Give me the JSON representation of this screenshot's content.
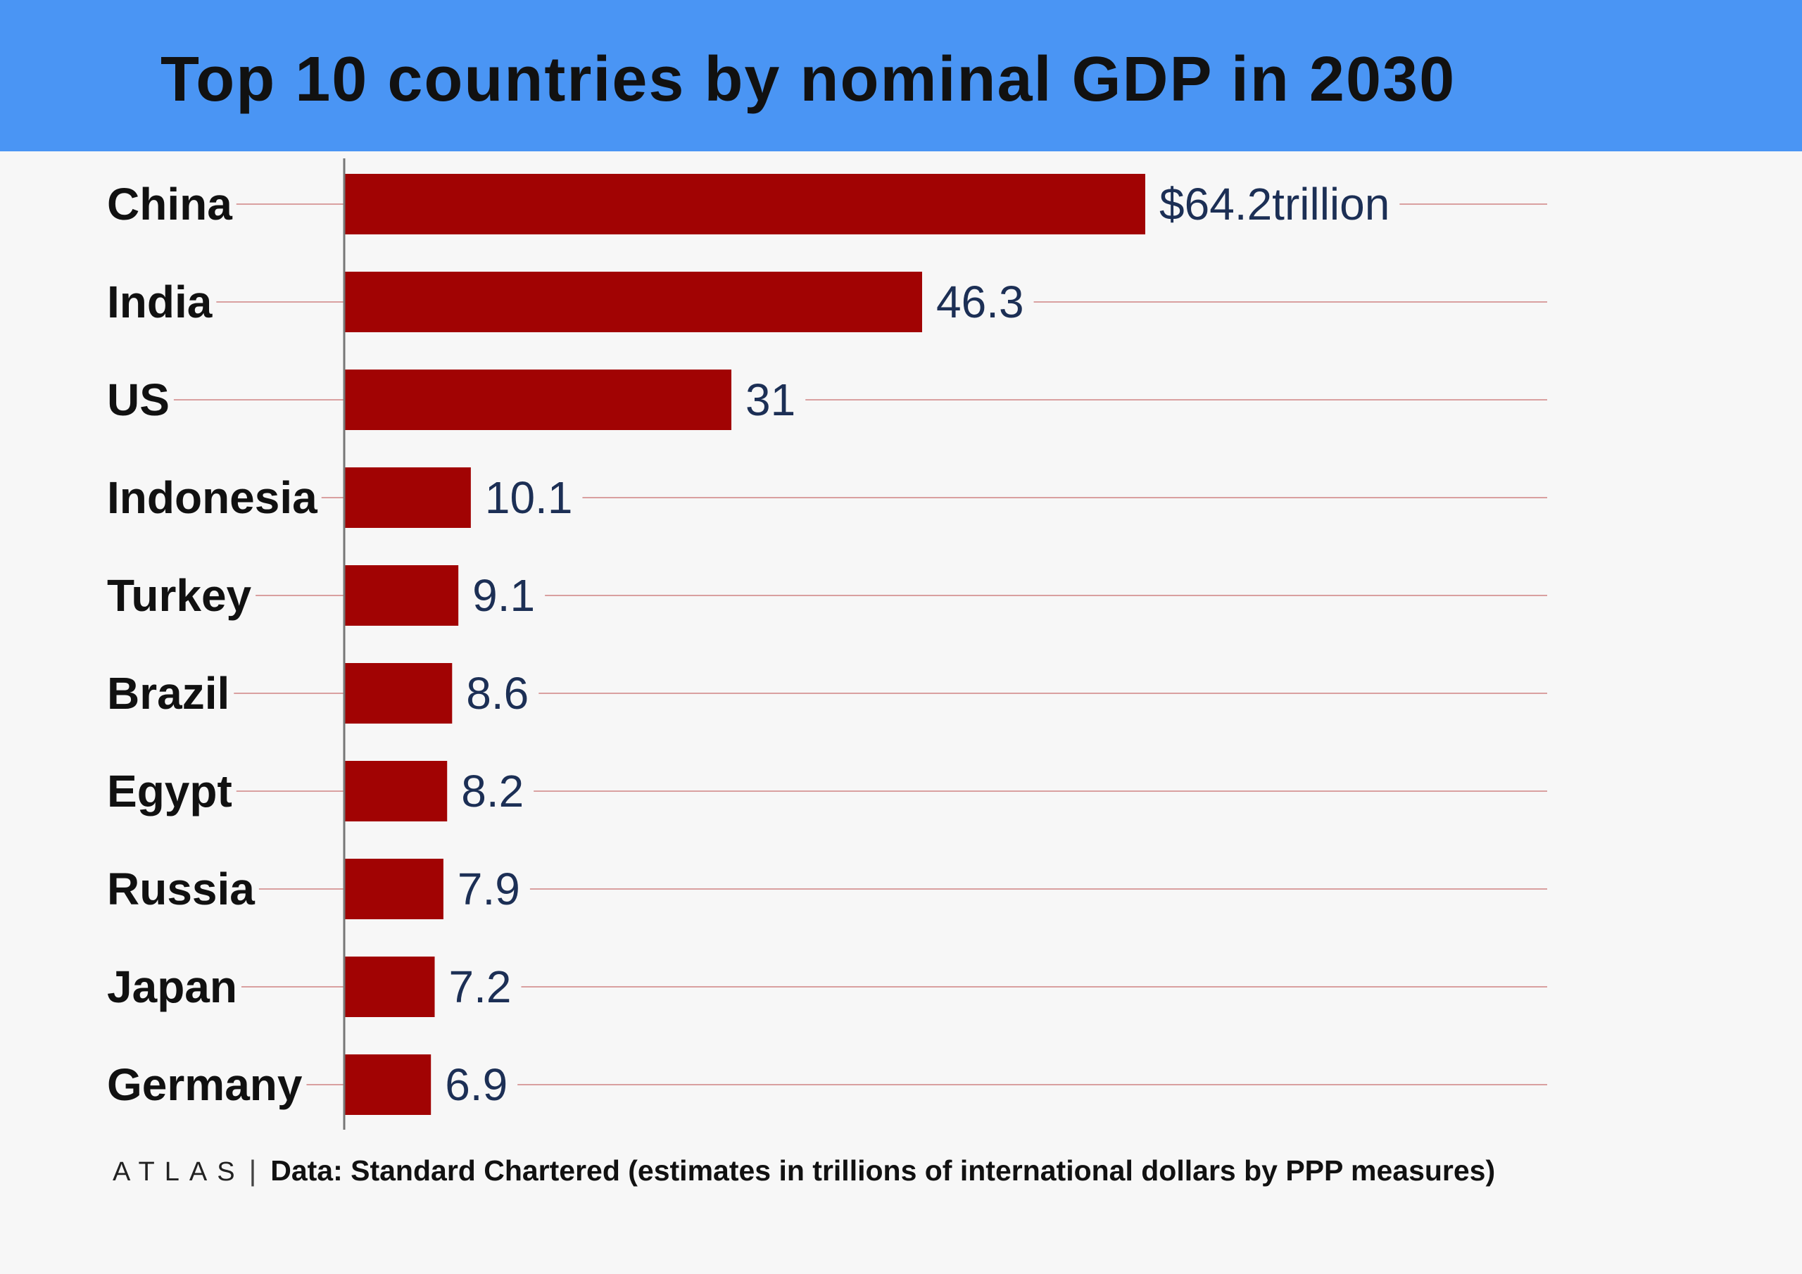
{
  "title": "Top 10 countries by nominal GDP in 2030",
  "footer": {
    "brand": "ATLAS",
    "separator": "|",
    "source": "Data: Standard Chartered (estimates in trillions of international dollars by PPP measures)"
  },
  "colors": {
    "header_bg": "#4a95f4",
    "bar": "#a10303",
    "value_text": "#1c2f55",
    "guide_line": "#d9a0a0"
  },
  "chart_data": {
    "type": "bar",
    "orientation": "horizontal",
    "title": "Top 10 countries by nominal GDP in 2030",
    "categories": [
      "China",
      "India",
      "US",
      "Indonesia",
      "Turkey",
      "Brazil",
      "Egypt",
      "Russia",
      "Japan",
      "Germany"
    ],
    "values": [
      64.2,
      46.3,
      31,
      10.1,
      9.1,
      8.6,
      8.2,
      7.9,
      7.2,
      6.9
    ],
    "labels": [
      "$64.2trillion",
      "46.3",
      "31",
      "10.1",
      "9.1",
      "8.6",
      "8.2",
      "7.9",
      "7.2",
      "6.9"
    ],
    "unit": "trillions of international dollars",
    "xlim": [
      0,
      64.2
    ],
    "grid": false,
    "legend": "none"
  }
}
